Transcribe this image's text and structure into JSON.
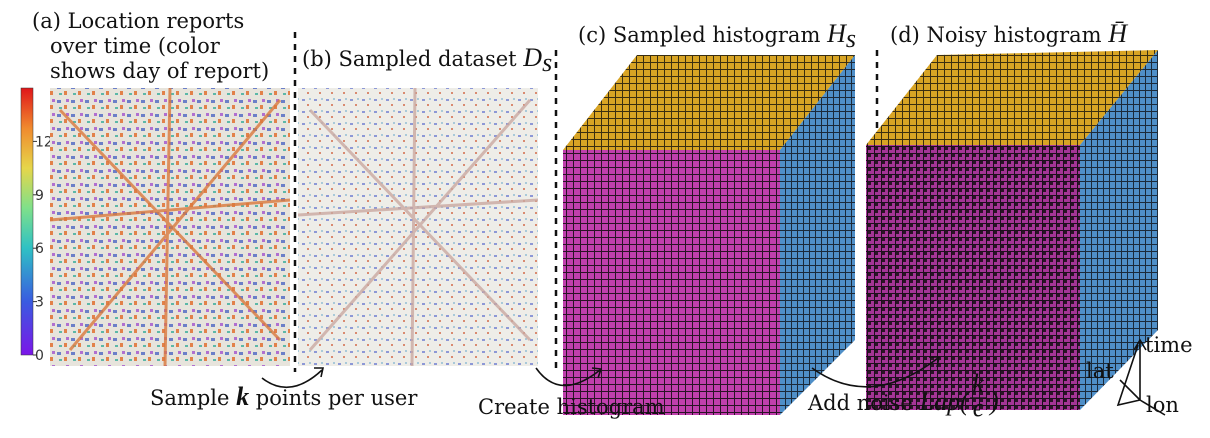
{
  "panel_a": {
    "title_lines": [
      "(a) Location reports",
      "over time (color",
      "shows day of report)"
    ],
    "colorbar": {
      "lim": [
        0,
        15
      ],
      "ticks": [
        0,
        3,
        6,
        9,
        12
      ]
    }
  },
  "panel_b": {
    "title": "(b) Sampled dataset",
    "symbol": "D",
    "subscript": "s"
  },
  "panel_c": {
    "title": "(c) Sampled histogram",
    "symbol": "H",
    "subscript": "s"
  },
  "panel_d": {
    "title": "(d) Noisy histogram",
    "symbol": "H̄"
  },
  "steps": {
    "sample": {
      "before": "Sample",
      "symbol": "k",
      "after": "points per user"
    },
    "histogram": "Create histogram",
    "noise": {
      "text": "Add noise",
      "lap": "Lap(",
      "numerator": "k",
      "denominator": "ϵ",
      "close": ")"
    }
  },
  "axes": {
    "lat": "lat",
    "time": "time",
    "lon": "lon"
  }
}
